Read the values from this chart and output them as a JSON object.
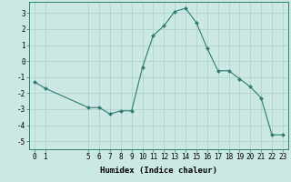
{
  "x": [
    0,
    1,
    5,
    6,
    7,
    8,
    9,
    10,
    11,
    12,
    13,
    14,
    15,
    16,
    17,
    18,
    19,
    20,
    21,
    22,
    23
  ],
  "y": [
    -1.3,
    -1.7,
    -2.9,
    -2.9,
    -3.3,
    -3.1,
    -3.1,
    -0.4,
    1.6,
    2.2,
    3.1,
    3.3,
    2.4,
    0.8,
    -0.6,
    -0.6,
    -1.1,
    -1.6,
    -2.3,
    -4.6,
    -4.6
  ],
  "line_color": "#2d7d6e",
  "marker": "D",
  "marker_size": 2,
  "bg_color": "#cce8e4",
  "grid_color": "#aacfca",
  "xlabel": "Humidex (Indice chaleur)",
  "xlim": [
    -0.5,
    23.5
  ],
  "ylim": [
    -5.5,
    3.7
  ],
  "yticks": [
    -5,
    -4,
    -3,
    -2,
    -1,
    0,
    1,
    2,
    3
  ],
  "xticks": [
    0,
    1,
    5,
    6,
    7,
    8,
    9,
    10,
    11,
    12,
    13,
    14,
    15,
    16,
    17,
    18,
    19,
    20,
    21,
    22,
    23
  ],
  "tick_fontsize": 5.5,
  "label_fontsize": 6.5
}
